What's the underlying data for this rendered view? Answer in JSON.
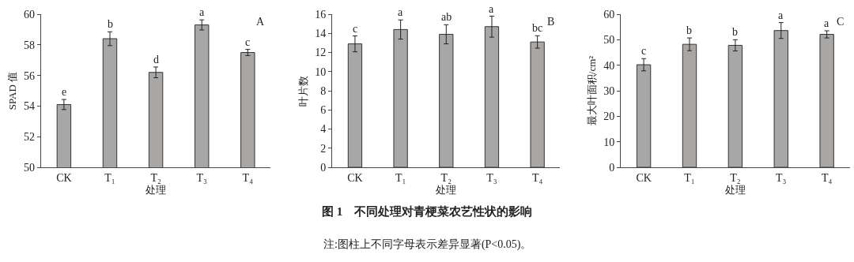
{
  "chart_data": [
    {
      "type": "bar",
      "categories": [
        "CK",
        "T₁",
        "T₂",
        "T₃",
        "T₄"
      ],
      "xlabel": "处理",
      "ylabel": "SPAD 值",
      "color": "#a9a7a6",
      "values": [
        54.1,
        58.4,
        56.2,
        59.3,
        57.5
      ],
      "errors": [
        0.33,
        0.45,
        0.35,
        0.33,
        0.2
      ],
      "ylim": [
        50,
        60
      ],
      "yticks": [
        50,
        52,
        54,
        56,
        58,
        60
      ],
      "annotations": [
        "A",
        {
          "text": "e",
          "x": "CK",
          "y": 54.43
        },
        {
          "text": "b",
          "x": "T₁",
          "y": 58.85
        },
        {
          "text": "d",
          "x": "T₂",
          "y": 56.55
        },
        {
          "text": "a",
          "x": "T₃",
          "y": 59.63
        },
        {
          "text": "c",
          "x": "T₄",
          "y": 57.7
        }
      ]
    },
    {
      "type": "bar",
      "categories": [
        "CK",
        "T₁",
        "T₂",
        "T₃",
        "T₄"
      ],
      "xlabel": "处理",
      "ylabel": "叶片数",
      "color": "#a9a7a6",
      "values": [
        12.9,
        14.4,
        13.9,
        14.7,
        13.1
      ],
      "errors": [
        0.83,
        1.0,
        1.0,
        1.1,
        0.65
      ],
      "ylim": [
        0,
        16
      ],
      "yticks": [
        0,
        2,
        4,
        6,
        8,
        10,
        12,
        14,
        16
      ],
      "annotations": [
        "B",
        {
          "text": "c",
          "x": "CK",
          "y": 13.68
        },
        {
          "text": "a",
          "x": "T₁",
          "y": 15.4
        },
        {
          "text": "ab",
          "x": "T₂",
          "y": 14.9
        },
        {
          "text": "a",
          "x": "T₃",
          "y": 15.75
        },
        {
          "text": "bc",
          "x": "T₄",
          "y": 13.75
        },
        "图 1　不同处理对青梗菜农艺性状的影响",
        "注:图柱上不同字母表示差异显著(P<0.05)。"
      ]
    },
    {
      "type": "bar",
      "categories": [
        "CK",
        "T₁",
        "T₂",
        "T₃",
        "T₄"
      ],
      "xlabel": "处理",
      "ylabel": "最大叶面积/cm²",
      "color": "#a9a7a6",
      "values": [
        40.2,
        48.2,
        47.8,
        53.6,
        52.1
      ],
      "errors": [
        2.4,
        2.5,
        2.2,
        3.1,
        1.4
      ],
      "ylim": [
        0,
        60
      ],
      "yticks": [
        0,
        10,
        20,
        30,
        40,
        50,
        60
      ],
      "annotations": [
        "C",
        {
          "text": "c",
          "x": "CK",
          "y": 42.6
        },
        {
          "text": "b",
          "x": "T₁",
          "y": 50.7
        },
        {
          "text": "b",
          "x": "T₂",
          "y": 50.0
        },
        {
          "text": "a",
          "x": "T₃",
          "y": 56.7
        },
        {
          "text": "a",
          "x": "T₄",
          "y": 53.5
        }
      ]
    }
  ]
}
